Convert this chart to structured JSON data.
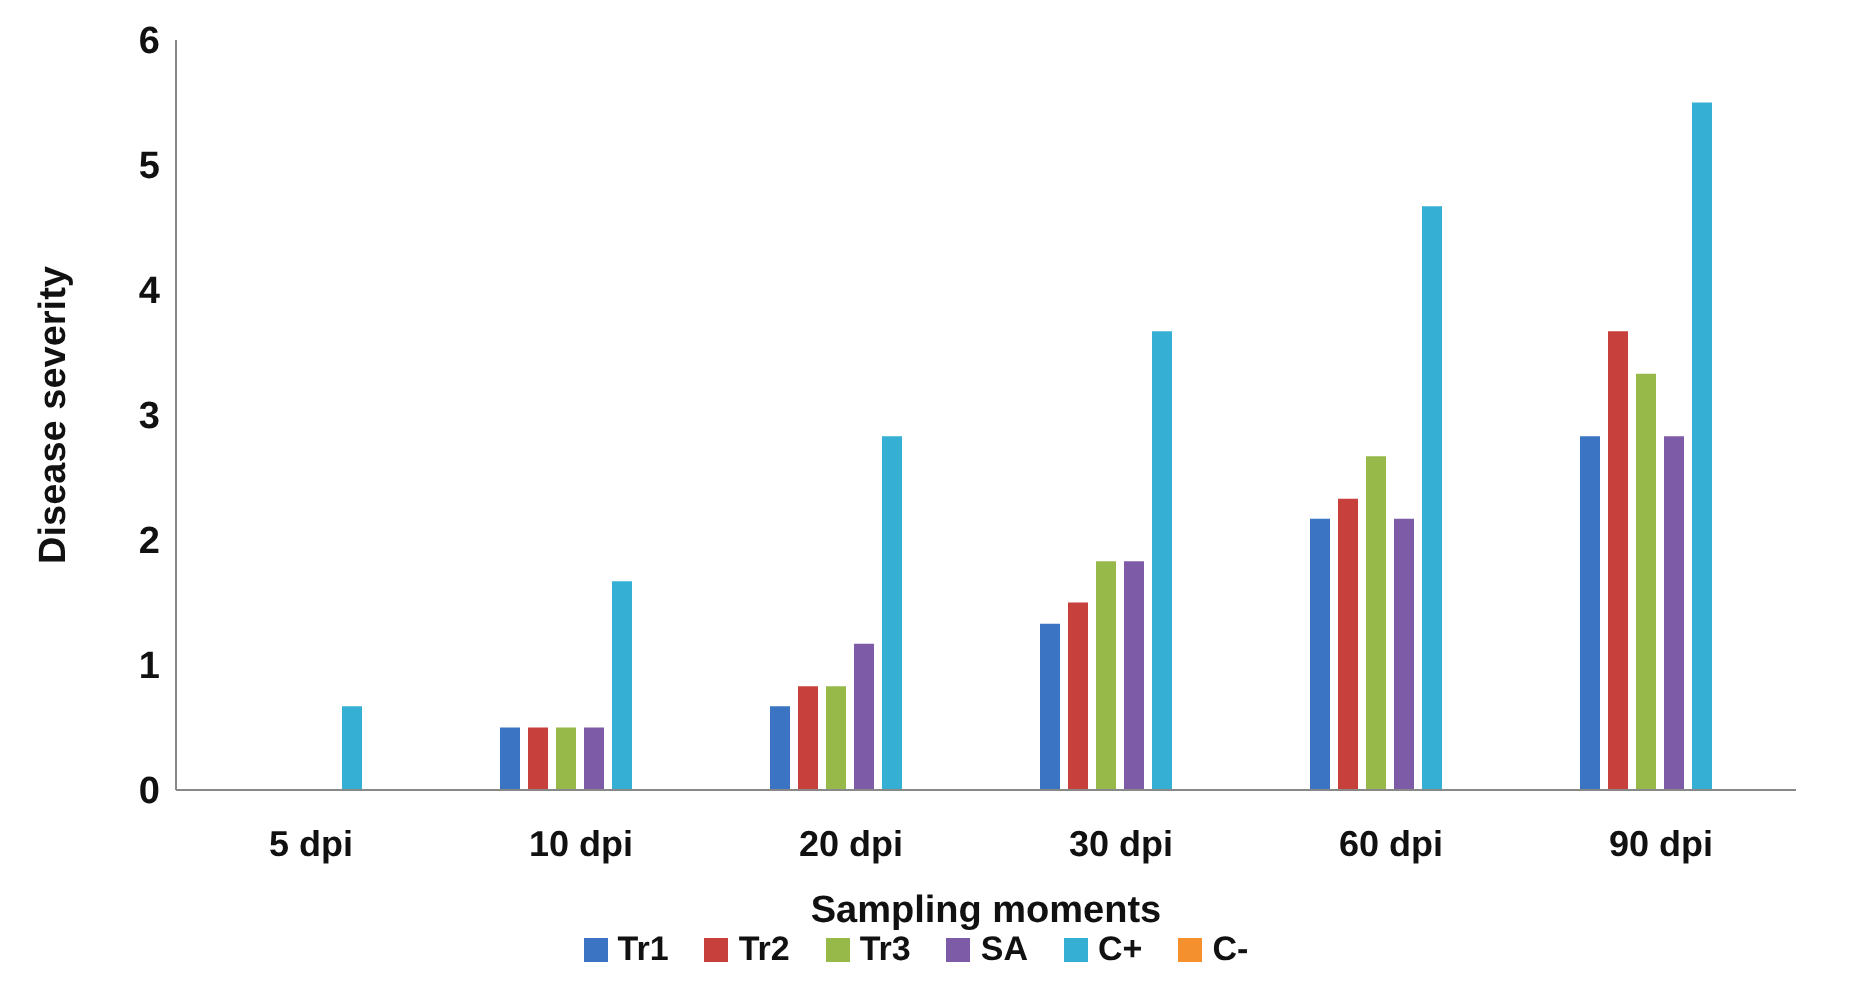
{
  "chart_data": {
    "type": "bar",
    "xlabel": "Sampling moments",
    "ylabel": "Disease severity",
    "categories": [
      "5 dpi",
      "10 dpi",
      "20 dpi",
      "30 dpi",
      "60 dpi",
      "90 dpi"
    ],
    "series": [
      {
        "name": "Tr1",
        "color": "#3b74c2",
        "values": [
          0,
          0.5,
          0.67,
          1.33,
          2.17,
          2.83
        ]
      },
      {
        "name": "Tr2",
        "color": "#c8403c",
        "values": [
          0,
          0.5,
          0.83,
          1.5,
          2.33,
          3.67
        ]
      },
      {
        "name": "Tr3",
        "color": "#97b94a",
        "values": [
          0,
          0.5,
          0.83,
          1.83,
          2.67,
          3.33
        ]
      },
      {
        "name": "SA",
        "color": "#7d5ba6",
        "values": [
          0,
          0.5,
          1.17,
          1.83,
          2.17,
          2.83
        ]
      },
      {
        "name": "C+",
        "color": "#35b0d4",
        "values": [
          0.67,
          1.67,
          2.83,
          3.67,
          4.67,
          5.5
        ]
      },
      {
        "name": "C-",
        "color": "#f5902e",
        "values": [
          0,
          0,
          0,
          0,
          0,
          0
        ]
      }
    ],
    "ylim": [
      0,
      6
    ],
    "yticks": [
      0,
      1,
      2,
      3,
      4,
      5,
      6
    ],
    "grid": false,
    "legend": "bottom"
  }
}
